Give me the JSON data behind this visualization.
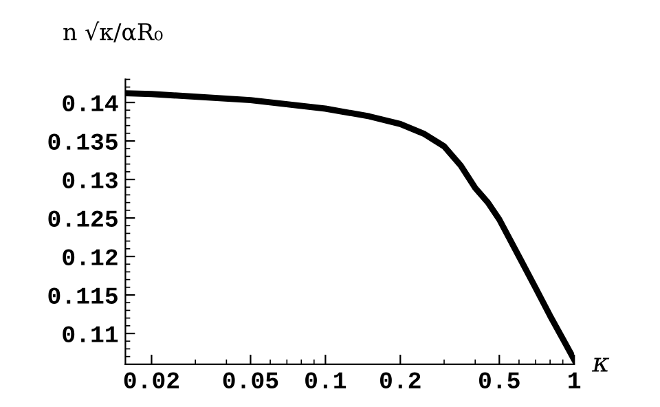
{
  "chart_data": {
    "type": "line",
    "xlabel": "κ",
    "ylabel": "n √κ/αR₀",
    "log": "x",
    "xlim": [
      0.0157,
      1
    ],
    "ylim": [
      0.106,
      0.143
    ],
    "xticks": [
      0.02,
      0.05,
      0.1,
      0.2,
      0.5,
      1
    ],
    "yticks": [
      0.11,
      0.115,
      0.12,
      0.125,
      0.13,
      0.135,
      0.14
    ],
    "grid": false,
    "legend": false,
    "series": [
      {
        "color": "#000000",
        "x": [
          0.0157,
          0.02,
          0.05,
          0.1,
          0.15,
          0.2,
          0.25,
          0.3,
          0.35,
          0.4,
          0.45,
          0.5,
          0.6,
          0.7,
          0.8,
          0.9,
          1.0
        ],
        "values": [
          0.1412,
          0.1411,
          0.1403,
          0.1392,
          0.1382,
          0.1372,
          0.1359,
          0.1343,
          0.1318,
          0.1289,
          0.127,
          0.1248,
          0.12,
          0.1159,
          0.1123,
          0.1093,
          0.1066
        ]
      }
    ]
  }
}
